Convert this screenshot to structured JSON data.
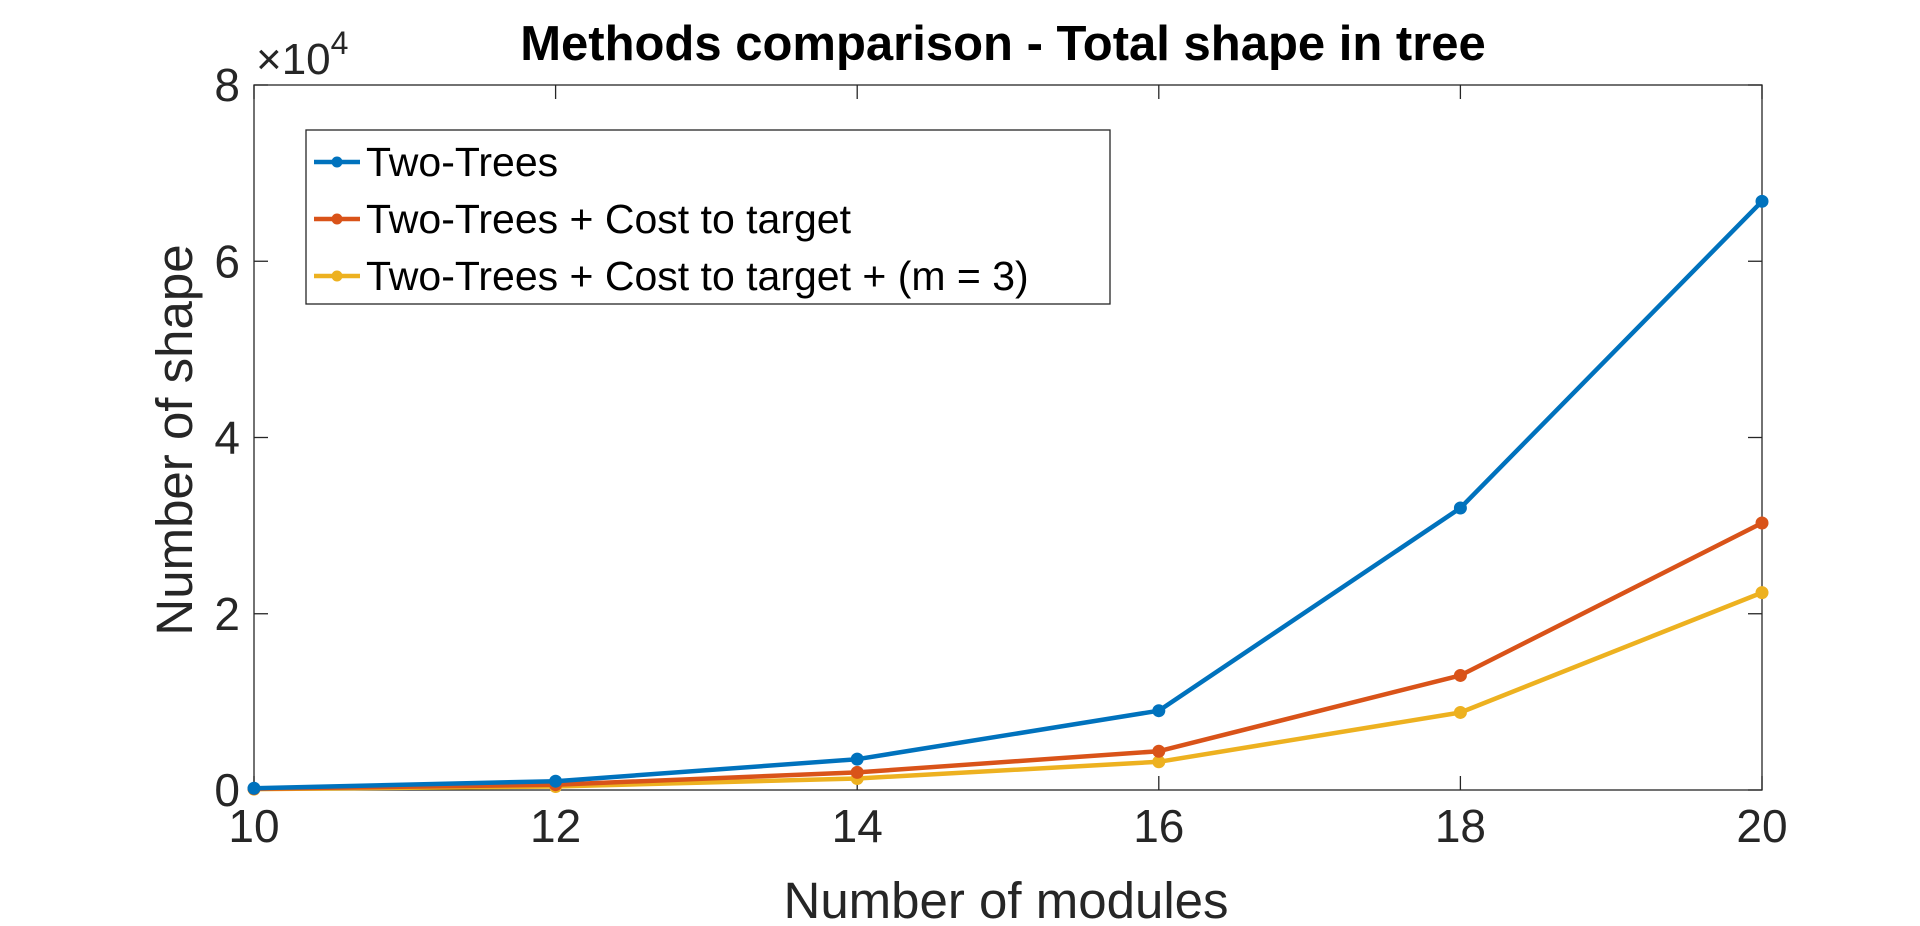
{
  "chart_data": {
    "type": "line",
    "title": "Methods comparison - Total shape in tree",
    "xlabel": "Number of modules",
    "ylabel": "Number of shape",
    "y_multiplier_base": "×10",
    "y_multiplier_exponent": "4",
    "x": [
      10,
      12,
      14,
      16,
      18,
      20
    ],
    "xlim": [
      10,
      20
    ],
    "ylim": [
      0,
      80000
    ],
    "x_ticks": [
      "10",
      "12",
      "14",
      "16",
      "18",
      "20"
    ],
    "y_ticks": [
      "0",
      "2",
      "4",
      "6",
      "8"
    ],
    "y_tick_values": [
      0,
      20000,
      40000,
      60000,
      80000
    ],
    "grid": false,
    "legend_position": "top-left",
    "series": [
      {
        "name": "Two-Trees",
        "color": "#0072BD",
        "values": [
          200,
          1000,
          3500,
          9000,
          32000,
          66800
        ]
      },
      {
        "name": "Two-Trees + Cost to target",
        "color": "#D95319",
        "values": [
          150,
          600,
          2000,
          4400,
          13000,
          30300
        ]
      },
      {
        "name": "Two-Trees + Cost to target + (m = 3)",
        "color": "#EDB120",
        "values": [
          100,
          400,
          1300,
          3200,
          8800,
          22400
        ]
      }
    ]
  }
}
